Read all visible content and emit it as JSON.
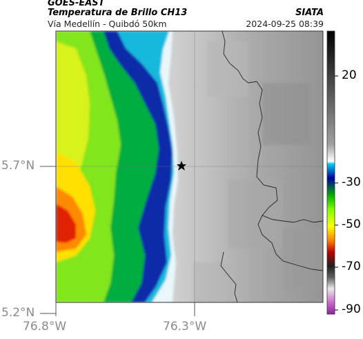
{
  "header": {
    "satellite": "GOES-EAST",
    "product": "Temperatura de Brillo CH13",
    "region": "Vía Medellín - Quibdó 50km",
    "agency": "SIATA",
    "datetime": "2024-09-25 08:39"
  },
  "map": {
    "lat_ticks": [
      "5.7°N",
      "5.2°N"
    ],
    "lon_ticks": [
      "76.8°W",
      "76.3°W"
    ],
    "marker_icon": "star-icon"
  },
  "colorbar": {
    "tick_labels": [
      "20",
      "-30",
      "-50",
      "-70",
      "-90"
    ],
    "palette_cold_to_warm": [
      "#b040a0",
      "#e0e0e0",
      "#202020",
      "#c00000",
      "#ff8000",
      "#ffff00",
      "#80ff00",
      "#00c000",
      "#0000a0",
      "#00b0e0",
      "#ffffff",
      "#808080",
      "#000000"
    ]
  }
}
